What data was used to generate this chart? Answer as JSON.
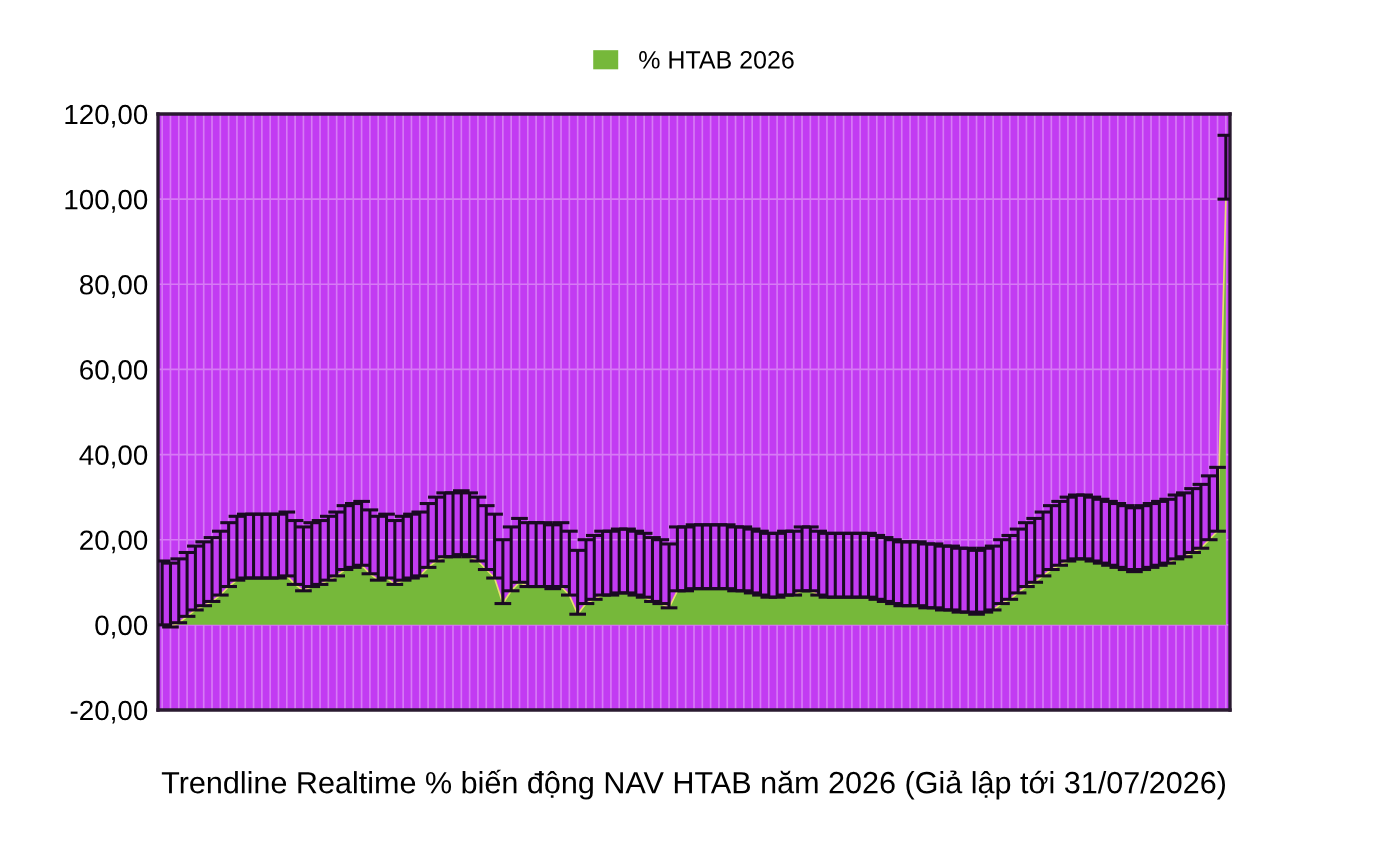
{
  "chart_data": {
    "type": "area",
    "xlabel": "Trendline Realtime % biến động NAV HTAB năm 2026 (Giả lập tới 31/07/2026)",
    "categories": [
      null,
      null,
      null,
      null,
      null,
      null,
      null,
      null,
      null,
      null,
      null,
      null,
      null,
      null,
      null,
      null,
      null,
      null,
      null,
      null,
      null,
      null,
      null,
      null,
      null,
      null,
      null,
      null,
      null,
      null,
      null,
      null,
      null,
      null,
      null,
      null,
      null,
      null,
      null,
      null,
      null,
      null,
      null,
      null,
      null,
      null,
      null,
      null,
      null,
      null,
      null,
      null,
      null,
      null,
      null,
      null,
      null,
      null,
      null,
      null,
      null,
      null,
      null,
      null,
      null,
      null,
      null,
      null,
      null,
      null,
      null,
      null,
      null,
      null,
      null,
      null,
      null,
      null,
      null,
      null,
      null,
      null,
      null,
      null,
      null,
      null,
      null,
      null,
      null,
      null,
      null,
      null,
      null,
      null,
      null,
      null,
      null,
      null,
      null,
      null,
      null,
      null,
      null,
      null,
      null,
      null,
      null,
      null,
      null,
      null,
      null,
      null,
      null,
      null,
      null,
      null,
      null,
      null,
      null,
      null,
      null,
      null,
      null,
      null,
      null,
      null,
      null,
      null,
      null
    ],
    "series": [
      {
        "name": "% HTAB 2026",
        "color": "#76b83a",
        "values": [
          0,
          -0.5,
          0.5,
          2,
          3.5,
          4.5,
          5.5,
          7,
          9,
          10.5,
          11,
          11,
          11,
          11,
          11,
          11.5,
          9.5,
          8,
          9,
          9.5,
          10.5,
          11.5,
          13,
          13.5,
          14,
          12,
          10.5,
          11,
          9.5,
          10.5,
          11,
          11.5,
          13.5,
          15,
          16,
          16,
          16.5,
          16,
          15,
          13,
          11,
          5,
          8,
          10,
          9,
          9,
          9,
          8.5,
          9,
          7,
          2.5,
          5,
          6,
          7,
          7,
          7.5,
          7.5,
          7,
          6.5,
          5.5,
          5,
          4,
          8,
          8,
          8.5,
          8.5,
          8.5,
          8.5,
          8.5,
          8,
          8,
          7.5,
          7,
          6.5,
          6.5,
          7,
          7,
          8,
          8,
          7,
          6.5,
          6.5,
          6.5,
          6.5,
          6.5,
          6.5,
          6,
          5.5,
          5,
          4.5,
          4.5,
          4.5,
          4,
          4,
          3.5,
          3.5,
          3,
          3,
          2.5,
          3,
          3.5,
          5,
          6,
          7.5,
          9,
          10,
          11.5,
          13,
          14,
          15,
          15.5,
          15.5,
          15,
          14.5,
          14,
          13.5,
          13,
          12.5,
          13,
          13.5,
          14,
          14.5,
          15.5,
          16,
          17,
          18,
          20,
          22,
          100
        ],
        "errors": [
          [
            0,
            15
          ],
          [
            -0.5,
            14.5
          ],
          [
            0.5,
            15.5
          ],
          [
            2,
            17
          ],
          [
            3.5,
            18.5
          ],
          [
            4.5,
            19.5
          ],
          [
            5.5,
            20.5
          ],
          [
            7,
            22
          ],
          [
            9,
            24
          ],
          [
            10.5,
            25.5
          ],
          [
            11,
            26
          ],
          [
            11,
            26
          ],
          [
            11,
            26
          ],
          [
            11,
            26
          ],
          [
            11,
            26
          ],
          [
            11.5,
            26.5
          ],
          [
            9.5,
            24.5
          ],
          [
            8,
            23
          ],
          [
            9,
            24
          ],
          [
            9.5,
            24.5
          ],
          [
            10.5,
            25.5
          ],
          [
            11.5,
            26.5
          ],
          [
            13,
            28
          ],
          [
            13.5,
            28.5
          ],
          [
            14,
            29
          ],
          [
            12,
            27
          ],
          [
            10.5,
            25.5
          ],
          [
            11,
            26
          ],
          [
            9.5,
            24.5
          ],
          [
            10.5,
            25.5
          ],
          [
            11,
            26
          ],
          [
            11.5,
            26.5
          ],
          [
            13.5,
            28.5
          ],
          [
            15,
            30
          ],
          [
            16,
            31
          ],
          [
            16,
            31
          ],
          [
            16.5,
            31.5
          ],
          [
            16,
            31
          ],
          [
            15,
            30
          ],
          [
            13,
            28
          ],
          [
            11,
            26
          ],
          [
            5,
            20
          ],
          [
            8,
            23
          ],
          [
            10,
            25
          ],
          [
            9,
            24
          ],
          [
            9,
            24
          ],
          [
            9,
            24
          ],
          [
            8.5,
            23.5
          ],
          [
            9,
            24
          ],
          [
            7,
            22
          ],
          [
            2.5,
            17.5
          ],
          [
            5,
            20
          ],
          [
            6,
            21
          ],
          [
            7,
            22
          ],
          [
            7,
            22
          ],
          [
            7.5,
            22.5
          ],
          [
            7.5,
            22.5
          ],
          [
            7,
            22
          ],
          [
            6.5,
            21.5
          ],
          [
            5.5,
            20.5
          ],
          [
            5,
            20
          ],
          [
            4,
            19
          ],
          [
            8,
            23
          ],
          [
            8,
            23
          ],
          [
            8.5,
            23.5
          ],
          [
            8.5,
            23.5
          ],
          [
            8.5,
            23.5
          ],
          [
            8.5,
            23.5
          ],
          [
            8.5,
            23.5
          ],
          [
            8,
            23
          ],
          [
            8,
            23
          ],
          [
            7.5,
            22.5
          ],
          [
            7,
            22
          ],
          [
            6.5,
            21.5
          ],
          [
            6.5,
            21.5
          ],
          [
            7,
            22
          ],
          [
            7,
            22
          ],
          [
            8,
            23
          ],
          [
            8,
            23
          ],
          [
            7,
            22
          ],
          [
            6.5,
            21.5
          ],
          [
            6.5,
            21.5
          ],
          [
            6.5,
            21.5
          ],
          [
            6.5,
            21.5
          ],
          [
            6.5,
            21.5
          ],
          [
            6.5,
            21.5
          ],
          [
            6,
            21
          ],
          [
            5.5,
            20.5
          ],
          [
            5,
            20
          ],
          [
            4.5,
            19.5
          ],
          [
            4.5,
            19.5
          ],
          [
            4.5,
            19.5
          ],
          [
            4,
            19
          ],
          [
            4,
            19
          ],
          [
            3.5,
            18.5
          ],
          [
            3.5,
            18.5
          ],
          [
            3,
            18
          ],
          [
            3,
            18
          ],
          [
            2.5,
            17.5
          ],
          [
            3,
            18
          ],
          [
            3.5,
            18.5
          ],
          [
            5,
            20
          ],
          [
            6,
            21
          ],
          [
            7.5,
            22.5
          ],
          [
            9,
            24
          ],
          [
            10,
            25
          ],
          [
            11.5,
            26.5
          ],
          [
            13,
            28
          ],
          [
            14,
            29
          ],
          [
            15,
            30
          ],
          [
            15.5,
            30.5
          ],
          [
            15.5,
            30.5
          ],
          [
            15,
            30
          ],
          [
            14.5,
            29.5
          ],
          [
            14,
            29
          ],
          [
            13.5,
            28.5
          ],
          [
            13,
            28
          ],
          [
            12.5,
            27.5
          ],
          [
            13,
            28
          ],
          [
            13.5,
            28.5
          ],
          [
            14,
            29
          ],
          [
            14.5,
            29.5
          ],
          [
            15.5,
            30.5
          ],
          [
            16,
            31
          ],
          [
            17,
            32
          ],
          [
            18,
            33
          ],
          [
            20,
            35
          ],
          [
            22,
            37
          ],
          [
            100,
            115
          ]
        ]
      }
    ],
    "ylim": [
      -20,
      120
    ],
    "yticks": [
      {
        "value": -20,
        "label": "-20,00"
      },
      {
        "value": 0,
        "label": "0,00"
      },
      {
        "value": 20,
        "label": "20,00"
      },
      {
        "value": 40,
        "label": "40,00"
      },
      {
        "value": 60,
        "label": "60,00"
      },
      {
        "value": 80,
        "label": "80,00"
      },
      {
        "value": 100,
        "label": "100,00"
      },
      {
        "value": 120,
        "label": "120,00"
      }
    ],
    "grid": true,
    "legend": "top"
  }
}
